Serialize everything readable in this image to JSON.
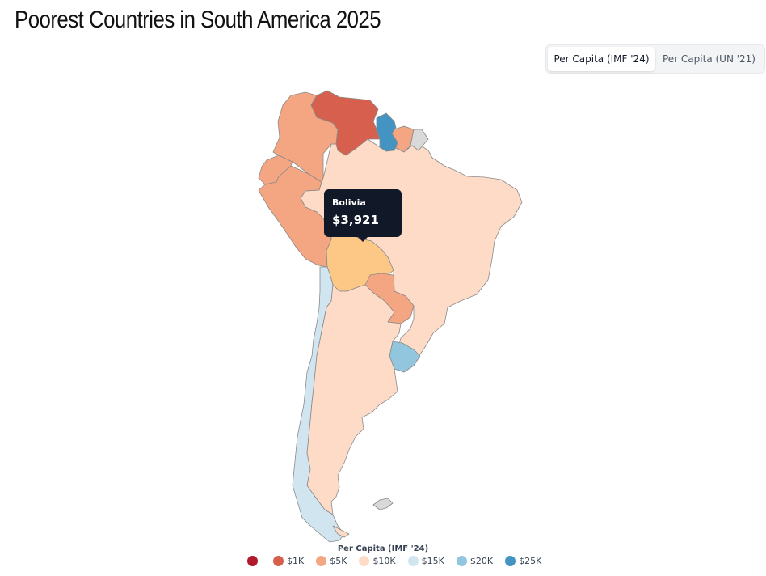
{
  "header": {
    "title": "Poorest Countries in South America 2025"
  },
  "toggle": {
    "options": [
      {
        "label": "Per Capita (IMF '24)",
        "active": true
      },
      {
        "label": "Per Capita (UN '21)",
        "active": false
      }
    ]
  },
  "map": {
    "countries": [
      {
        "name": "Venezuela",
        "color": "#d6604d"
      },
      {
        "name": "Colombia",
        "color": "#f4a582"
      },
      {
        "name": "Ecuador",
        "color": "#f4a582"
      },
      {
        "name": "Peru",
        "color": "#f4a582"
      },
      {
        "name": "Guyana",
        "color": "#4393c3"
      },
      {
        "name": "Suriname",
        "color": "#f4a582"
      },
      {
        "name": "French Guiana",
        "color": "#d9d9d9"
      },
      {
        "name": "Brazil",
        "color": "#fddbc7"
      },
      {
        "name": "Bolivia",
        "color": "#fdc886"
      },
      {
        "name": "Paraguay",
        "color": "#f4a582"
      },
      {
        "name": "Uruguay",
        "color": "#92c5de"
      },
      {
        "name": "Argentina",
        "color": "#fddbc7"
      },
      {
        "name": "Chile",
        "color": "#d1e5f0"
      },
      {
        "name": "Falkland Islands",
        "color": "#d9d9d9"
      }
    ]
  },
  "tooltip": {
    "country": "Bolivia",
    "value": "$3,921"
  },
  "legend": {
    "title": "Per Capita (IMF '24)",
    "items": [
      {
        "label": "",
        "color": "#b2182b"
      },
      {
        "label": "$1K",
        "color": "#d6604d"
      },
      {
        "label": "$5K",
        "color": "#f4a582"
      },
      {
        "label": "$10K",
        "color": "#fddbc7"
      },
      {
        "label": "$15K",
        "color": "#d1e5f0"
      },
      {
        "label": "$20K",
        "color": "#92c5de"
      },
      {
        "label": "$25K",
        "color": "#4393c3"
      }
    ]
  }
}
